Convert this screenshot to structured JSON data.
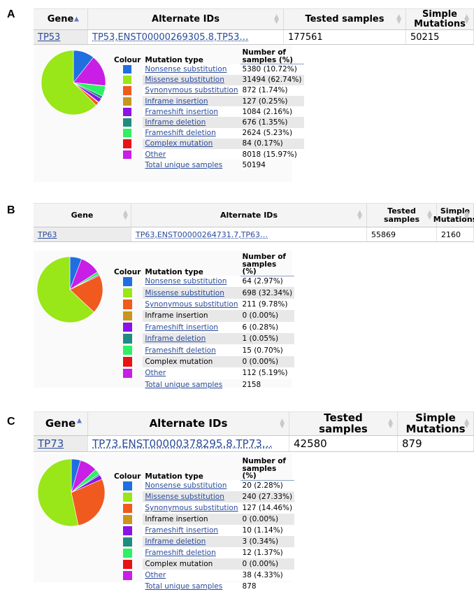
{
  "figure": {
    "labels": [
      "A",
      "B",
      "C"
    ]
  },
  "tables": [
    {
      "headers": {
        "gene": "Gene",
        "alt_ids": "Alternate IDs",
        "tested": "Tested samples",
        "simple": "Simple Mutations"
      },
      "row": {
        "gene": "TP53",
        "alt_ids": "TP53,ENST00000269305.8,TP53…",
        "tested": "177561",
        "simple": "50215"
      }
    },
    {
      "headers": {
        "gene": "Gene",
        "alt_ids": "Alternate IDs",
        "tested": "Tested samples",
        "simple": "Simple Mutations"
      },
      "row": {
        "gene": "TP63",
        "alt_ids": "TP63,ENST00000264731.7,TP63…",
        "tested": "55869",
        "simple": "2160"
      }
    },
    {
      "headers": {
        "gene": "Gene",
        "alt_ids": "Alternate IDs",
        "tested": "Tested samples",
        "simple": "Simple Mutations"
      },
      "row": {
        "gene": "TP73",
        "alt_ids": "TP73,ENST00000378295.8,TP73…",
        "tested": "42580",
        "simple": "879"
      }
    }
  ],
  "legend_headers": {
    "colour": "Colour",
    "mutation_type": "Mutation type",
    "number": "Number of samples (%)"
  },
  "colors": {
    "Nonsense substitution": "#1f6fe0",
    "Missense substitution": "#99e619",
    "Synonymous substitution": "#f05a1e",
    "Inframe insertion": "#c8961e",
    "Frameshift insertion": "#8a14e6",
    "Inframe deletion": "#1e8c82",
    "Frameshift deletion": "#2ef064",
    "Complex mutation": "#e61414",
    "Other": "#c81ee6"
  },
  "chart_data": [
    {
      "type": "pie",
      "title": "",
      "categories": [
        "Nonsense substitution",
        "Missense substitution",
        "Synonymous substitution",
        "Inframe insertion",
        "Frameshift insertion",
        "Inframe deletion",
        "Frameshift deletion",
        "Complex mutation",
        "Other"
      ],
      "values": [
        5380,
        31494,
        872,
        127,
        1084,
        676,
        2624,
        84,
        8018
      ],
      "value_labels": [
        "5380 (10.72%)",
        "31494 (62.74%)",
        "872 (1.74%)",
        "127 (0.25%)",
        "1084 (2.16%)",
        "676 (1.35%)",
        "2624 (5.23%)",
        "84 (0.17%)",
        "8018 (15.97%)"
      ],
      "linked": [
        true,
        true,
        true,
        true,
        true,
        true,
        true,
        true,
        true
      ],
      "total_label": "Total unique samples",
      "total_value": "50194"
    },
    {
      "type": "pie",
      "title": "",
      "categories": [
        "Nonsense substitution",
        "Missense substitution",
        "Synonymous substitution",
        "Inframe insertion",
        "Frameshift insertion",
        "Inframe deletion",
        "Frameshift deletion",
        "Complex mutation",
        "Other"
      ],
      "values": [
        64,
        698,
        211,
        0,
        6,
        1,
        15,
        0,
        112
      ],
      "value_labels": [
        "64 (2.97%)",
        "698 (32.34%)",
        "211 (9.78%)",
        "0 (0.00%)",
        "6 (0.28%)",
        "1 (0.05%)",
        "15 (0.70%)",
        "0 (0.00%)",
        "112 (5.19%)"
      ],
      "linked": [
        true,
        true,
        true,
        false,
        true,
        true,
        true,
        false,
        true
      ],
      "total_label": "Total unique samples",
      "total_value": "2158"
    },
    {
      "type": "pie",
      "title": "",
      "categories": [
        "Nonsense substitution",
        "Missense substitution",
        "Synonymous substitution",
        "Inframe insertion",
        "Frameshift insertion",
        "Inframe deletion",
        "Frameshift deletion",
        "Complex mutation",
        "Other"
      ],
      "values": [
        20,
        240,
        127,
        0,
        10,
        3,
        12,
        0,
        38
      ],
      "value_labels": [
        "20 (2.28%)",
        "240 (27.33%)",
        "127 (14.46%)",
        "0 (0.00%)",
        "10 (1.14%)",
        "3 (0.34%)",
        "12 (1.37%)",
        "0 (0.00%)",
        "38 (4.33%)"
      ],
      "linked": [
        true,
        true,
        true,
        false,
        true,
        true,
        true,
        false,
        true
      ],
      "total_label": "Total unique samples",
      "total_value": "878"
    }
  ]
}
